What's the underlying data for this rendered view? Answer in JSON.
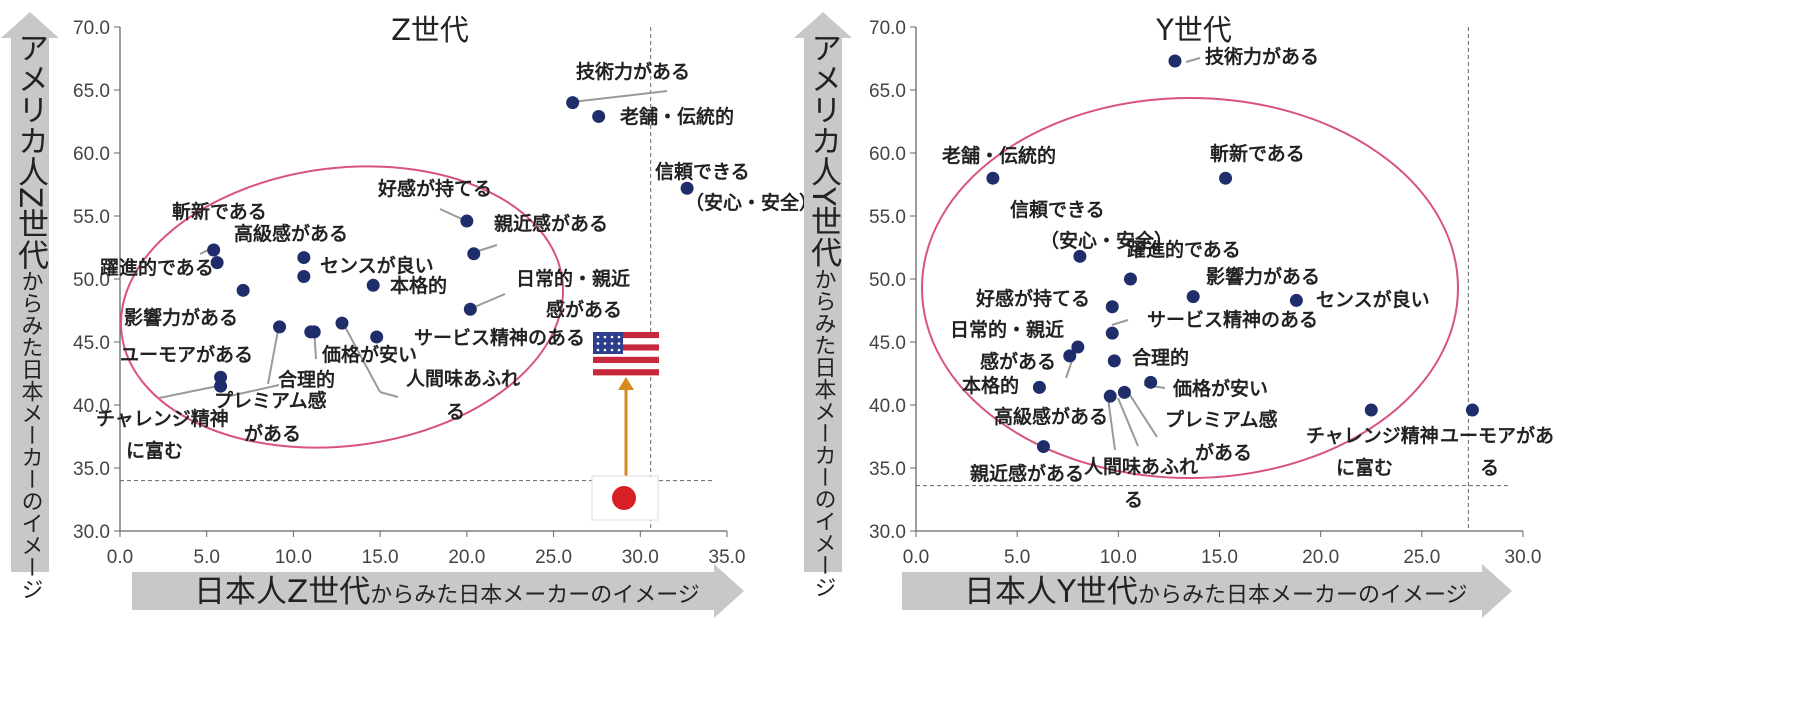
{
  "colors": {
    "point": "#1f2d6b",
    "ellipse": "#d8547a",
    "arrow_gray": "#c8c8c8",
    "leader": "#9a9a9a",
    "flag_arrow": "#d98a1f",
    "flag_red": "#d71f26",
    "us_blue": "#2c3e8c",
    "us_red": "#c8283c"
  },
  "chart_data": [
    {
      "type": "scatter",
      "title": "Z世代",
      "xlabel_main": "日本人Z世代",
      "xlabel_sub": "からみた日本メーカーのイメージ",
      "ylabel_main": "アメリカ人Z世代",
      "ylabel_sub": "からみた日本メーカーのイメージ",
      "xlim": [
        0,
        35
      ],
      "ylim": [
        30,
        70
      ],
      "xticks": [
        "0.0",
        "5.0",
        "10.0",
        "15.0",
        "20.0",
        "25.0",
        "30.0",
        "35.0"
      ],
      "yticks": [
        "30.0",
        "35.0",
        "40.0",
        "45.0",
        "50.0",
        "55.0",
        "60.0",
        "65.0",
        "70.0"
      ],
      "ref_x": 30.6,
      "ref_y": 34.0,
      "points": [
        {
          "label": "技術力がある",
          "x": 26.1,
          "y": 64.0
        },
        {
          "label": "老舗・伝統的",
          "x": 27.6,
          "y": 62.9
        },
        {
          "label": "信頼できる（安心・安全）",
          "x": 32.7,
          "y": 57.2
        },
        {
          "label": "好感が持てる",
          "x": 20.0,
          "y": 54.6
        },
        {
          "label": "親近感がある",
          "x": 20.4,
          "y": 52.0
        },
        {
          "label": "斬新である",
          "x": 5.4,
          "y": 52.3
        },
        {
          "label": "躍進的である",
          "x": 5.6,
          "y": 51.3
        },
        {
          "label": "高級感がある",
          "x": 7.1,
          "y": 49.1
        },
        {
          "label": "センスが良い",
          "x": 10.6,
          "y": 51.7
        },
        {
          "label": "本格的",
          "x": 10.6,
          "y": 50.2
        },
        {
          "label": "影響力がある",
          "x": 14.6,
          "y": 49.5
        },
        {
          "label": "日常的・親近感がある",
          "x": 20.2,
          "y": 47.6
        },
        {
          "label": "合理的",
          "x": 9.2,
          "y": 46.2
        },
        {
          "label": "プレミアム感がある",
          "x": 11.0,
          "y": 45.8
        },
        {
          "label": "価格が安い",
          "x": 11.2,
          "y": 45.8
        },
        {
          "label": "人間味あふれる",
          "x": 12.8,
          "y": 46.5
        },
        {
          "label": "サービス精神のある",
          "x": 14.8,
          "y": 45.4
        },
        {
          "label": "ユーモアがある",
          "x": 5.8,
          "y": 42.2
        },
        {
          "label": "チャレンジ精神に富む",
          "x": 5.8,
          "y": 41.5
        }
      ]
    },
    {
      "type": "scatter",
      "title": "Y世代",
      "xlabel_main": "日本人Y世代",
      "xlabel_sub": "からみた日本メーカーのイメージ",
      "ylabel_main": "アメリカ人Y世代",
      "ylabel_sub": "からみた日本メーカーのイメージ",
      "xlim": [
        0,
        30
      ],
      "ylim": [
        30,
        70
      ],
      "xticks": [
        "0.0",
        "5.0",
        "10.0",
        "15.0",
        "20.0",
        "25.0",
        "30.0"
      ],
      "yticks": [
        "30.0",
        "35.0",
        "40.0",
        "45.0",
        "50.0",
        "55.0",
        "60.0",
        "65.0",
        "70.0"
      ],
      "ref_x": 27.3,
      "ref_y": 33.6,
      "points": [
        {
          "label": "技術力がある",
          "x": 12.8,
          "y": 67.3
        },
        {
          "label": "老舗・伝統的",
          "x": 3.8,
          "y": 58.0
        },
        {
          "label": "斬新である",
          "x": 15.3,
          "y": 58.0
        },
        {
          "label": "信頼できる（安心・安全）",
          "x": 8.1,
          "y": 51.8
        },
        {
          "label": "躍進的である",
          "x": 10.6,
          "y": 50.0
        },
        {
          "label": "影響力がある",
          "x": 13.7,
          "y": 48.6
        },
        {
          "label": "センスが良い",
          "x": 18.8,
          "y": 48.3
        },
        {
          "label": "好感が持てる",
          "x": 9.7,
          "y": 47.8
        },
        {
          "label": "サービス精神のある",
          "x": 9.7,
          "y": 45.7
        },
        {
          "label": "日常的・親近感がある",
          "x": 8.0,
          "y": 44.6
        },
        {
          "label": "合理的",
          "x": 9.8,
          "y": 43.5
        },
        {
          "label": "本格的",
          "x": 7.6,
          "y": 43.9
        },
        {
          "label": "価格が安い",
          "x": 11.6,
          "y": 41.8
        },
        {
          "label": "高級感がある",
          "x": 6.1,
          "y": 41.4
        },
        {
          "label": "プレミアム感がある",
          "x": 10.3,
          "y": 41.0
        },
        {
          "label": "人間味あふれる",
          "x": 9.6,
          "y": 40.7
        },
        {
          "label": "チャレンジ精神に富む",
          "x": 22.5,
          "y": 39.6
        },
        {
          "label": "ユーモアがある",
          "x": 27.5,
          "y": 39.6
        },
        {
          "label": "親近感がある",
          "x": 6.3,
          "y": 36.7
        }
      ]
    }
  ]
}
